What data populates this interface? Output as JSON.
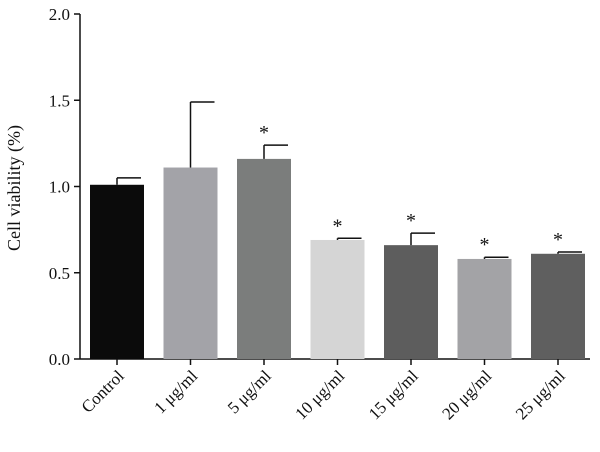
{
  "chart_data": {
    "type": "bar",
    "title": "",
    "xlabel": "",
    "ylabel": "Cell viability (%)",
    "ylim": [
      0,
      2.0
    ],
    "yticks": [
      0.0,
      0.5,
      1.0,
      1.5,
      2.0
    ],
    "ytick_labels": [
      "0.0",
      "0.5",
      "1.0",
      "1.5",
      "2.0"
    ],
    "categories": [
      "Control",
      "1 μg/ml",
      "5 μg/ml",
      "10 μg/ml",
      "15 μg/ml",
      "20 μg/ml",
      "25 μg/ml"
    ],
    "values": [
      1.01,
      1.11,
      1.16,
      0.69,
      0.66,
      0.58,
      0.61
    ],
    "errors": [
      0.04,
      0.38,
      0.08,
      0.01,
      0.07,
      0.01,
      0.01
    ],
    "significance": [
      "",
      "",
      "*",
      "*",
      "*",
      "*",
      "*"
    ],
    "bar_colors": [
      "#0b0b0b",
      "#a3a3a8",
      "#7b7d7c",
      "#d5d5d5",
      "#5d5d5d",
      "#a3a3a6",
      "#5f5f5f"
    ],
    "grid": false,
    "legend": "none"
  }
}
